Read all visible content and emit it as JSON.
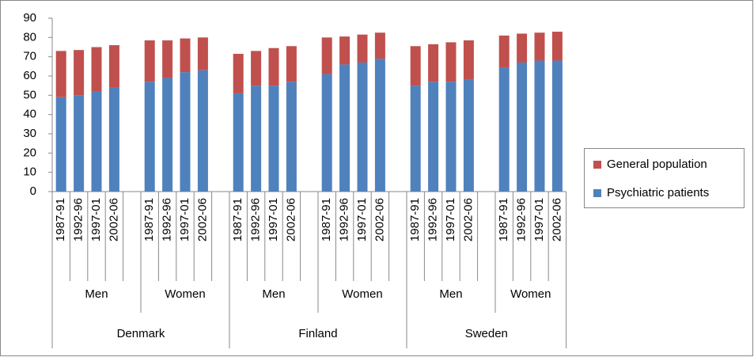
{
  "chart_data": {
    "type": "stacked-bar",
    "categories": [
      "1987-91",
      "1992-96",
      "1997-01",
      "2002-06",
      null,
      "1987-91",
      "1992-96",
      "1997-01",
      "2002-06",
      null,
      "1987-91",
      "1992-96",
      "1997-01",
      "2002-06",
      null,
      "1987-91",
      "1992-96",
      "1997-01",
      "2002-06",
      null,
      "1987-91",
      "1992-96",
      "1997-01",
      "2002-06",
      null,
      "1987-91",
      "1992-96",
      "1997-01",
      "2002-06"
    ],
    "sex_groups": [
      "Men",
      "Women",
      "Men",
      "Women",
      "Men",
      "Women"
    ],
    "countries": [
      "Denmark",
      "Finland",
      "Sweden"
    ],
    "series": [
      {
        "name": "Psychiatric patients",
        "color": "#4f81bd",
        "values": [
          49,
          50,
          52,
          54,
          null,
          57,
          59,
          62,
          63,
          null,
          51,
          55,
          55,
          57,
          null,
          61,
          66,
          67,
          69,
          null,
          55,
          57,
          57,
          58,
          null,
          64.5,
          67,
          68,
          68
        ]
      },
      {
        "name": "General population",
        "color": "#c0504d",
        "values": [
          24,
          23.5,
          23,
          22,
          null,
          21.5,
          19.5,
          17.5,
          17,
          null,
          20.5,
          18,
          19.5,
          18.5,
          null,
          19,
          14.5,
          14.5,
          13.5,
          null,
          20.5,
          19.5,
          20.5,
          20.5,
          null,
          16.5,
          15,
          14.5,
          15
        ]
      }
    ],
    "ylim": [
      0,
      90
    ],
    "yticks": [
      0,
      10,
      20,
      30,
      40,
      50,
      60,
      70,
      80,
      90
    ],
    "grid": false
  }
}
